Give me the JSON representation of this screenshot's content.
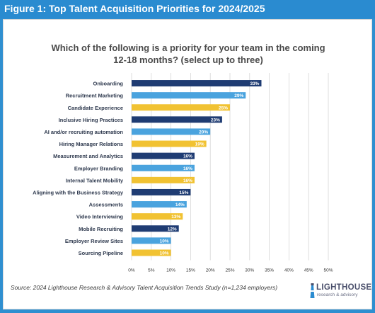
{
  "figure": {
    "title": "Figure 1: Top Talent Acquisition Priorities for 2024/2025"
  },
  "source_note": "Source: 2024 Lighthouse Research & Advisory Talent Acquisition Trends Study (n=1,234 employers)",
  "logo": {
    "name": "LIGHTHOUSE",
    "tagline": "research & advisory"
  },
  "chart_data": {
    "type": "bar",
    "orientation": "horizontal",
    "title": "Which of the following is a priority for your team in the coming 12-18 months? (select up to three)",
    "title_lines": [
      "Which of the following is a priority for your team in the coming",
      "12-18 months? (select up to three)"
    ],
    "categories": [
      "Onboarding",
      "Recruitment Marketing",
      "Candidate Experience",
      "Inclusive Hiring Practices",
      "AI and/or recruiting automation",
      "Hiring Manager Relations",
      "Measurement and Analytics",
      "Employer Branding",
      "Internal Talent Mobility",
      "Aligning with the Business Strategy",
      "Assessments",
      "Video Interviewing",
      "Mobile Recruiting",
      "Employer Review Sites",
      "Sourcing Pipeline"
    ],
    "values": [
      33,
      29,
      25,
      23,
      20,
      19,
      16,
      16,
      16,
      15,
      14,
      13,
      12,
      10,
      10
    ],
    "value_labels": [
      "33%",
      "29%",
      "25%",
      "23%",
      "20%",
      "19%",
      "16%",
      "16%",
      "16%",
      "15%",
      "14%",
      "13%",
      "12%",
      "10%",
      "10%"
    ],
    "bar_colors": [
      "#1f3c73",
      "#4aa3de",
      "#f1c232",
      "#1f3c73",
      "#4aa3de",
      "#f1c232",
      "#1f3c73",
      "#4aa3de",
      "#f1c232",
      "#1f3c73",
      "#4aa3de",
      "#f1c232",
      "#1f3c73",
      "#4aa3de",
      "#f1c232"
    ],
    "xlim": [
      0,
      50
    ],
    "xticks": [
      0,
      5,
      10,
      15,
      20,
      25,
      30,
      35,
      40,
      45,
      50
    ],
    "xtick_labels": [
      "0%",
      "5%",
      "10%",
      "15%",
      "20%",
      "25%",
      "30%",
      "35%",
      "40%",
      "45%",
      "50%"
    ],
    "grid": true,
    "xlabel": "",
    "ylabel": ""
  },
  "colors": {
    "header_bg": "#2a8bd0",
    "navy": "#1f3c73",
    "blue": "#4aa3de",
    "gold": "#f1c232",
    "grid": "#d6d6d6"
  }
}
